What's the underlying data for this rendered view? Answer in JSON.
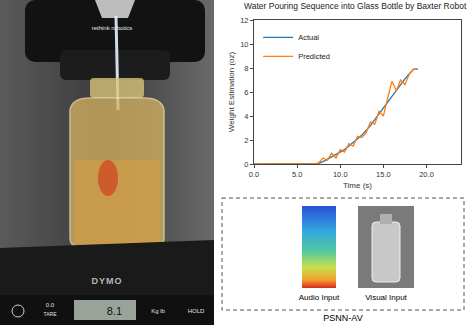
{
  "chart_data": {
    "type": "line",
    "title": "Water Pouring Sequence into Glass Bottle by Baxter Robot",
    "x_label": "Time (s)",
    "y_label": "Weight Estimation (oz)",
    "x": [
      0,
      2,
      4,
      6,
      7,
      7.5,
      8,
      8.5,
      9,
      9.5,
      10,
      10.5,
      11,
      11.5,
      12,
      12.5,
      13,
      13.5,
      14,
      14.5,
      15,
      15.5,
      16,
      16.5,
      17,
      17.5,
      18,
      18.5,
      19
    ],
    "series": [
      {
        "name": "Actual",
        "color": "#1f77b4",
        "values": [
          0,
          0,
          0,
          0,
          0,
          0.05,
          0.2,
          0.4,
          0.6,
          0.8,
          1.0,
          1.2,
          1.5,
          1.8,
          2.1,
          2.4,
          2.8,
          3.2,
          3.7,
          4.2,
          4.7,
          5.2,
          5.7,
          6.2,
          6.7,
          7.1,
          7.5,
          7.9,
          7.9
        ]
      },
      {
        "name": "Predicted",
        "color": "#ff7f0e",
        "values": [
          0,
          0,
          0,
          0,
          0,
          0.1,
          0.5,
          0.3,
          0.9,
          0.5,
          1.2,
          1.0,
          1.7,
          1.5,
          2.3,
          2.2,
          2.6,
          3.5,
          3.3,
          4.4,
          4.0,
          5.5,
          6.9,
          6.1,
          7.0,
          6.6,
          7.5,
          7.9,
          7.9
        ]
      }
    ],
    "xlim": [
      0,
      24
    ],
    "xticks": [
      {
        "value": 0,
        "label": "0.0"
      },
      {
        "value": 5,
        "label": "5.0"
      },
      {
        "value": 10,
        "label": "10.0"
      },
      {
        "value": 15,
        "label": "15.0"
      },
      {
        "value": 20,
        "label": "20.0"
      }
    ],
    "ylim": [
      0,
      12
    ],
    "yticks": [
      0,
      2,
      4,
      6,
      8,
      10,
      12
    ],
    "grid": false,
    "legend": "upper left"
  },
  "photo": {
    "gripper_brand": "rethink robotics",
    "scale_brand": "DYMO",
    "tare_value": "0.0",
    "tare_label": "TARE",
    "display_reading": "8.1",
    "units_label": "Kg lb",
    "hold_label": "HOLD"
  },
  "inset": {
    "audio_label": "Audio Input",
    "visual_label": "Visual Input",
    "caption": "PSNN-AV"
  }
}
